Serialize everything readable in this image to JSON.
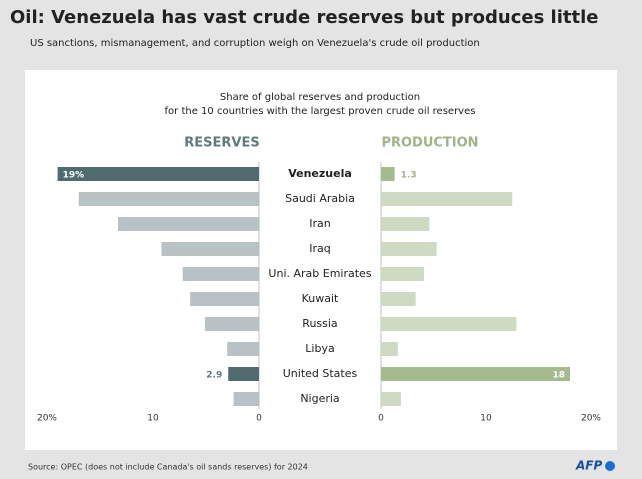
{
  "title": "Oil: Venezuela has vast crude reserves but produces little",
  "subtitle": "US sanctions, mismanagement, and corruption weigh on Venezuela's crude oil production",
  "source": "Source: OPEC (does not include Canada's oil sands reserves) for 2024",
  "logo": "AFP",
  "chart_data": {
    "type": "butterfly",
    "title_lines": [
      "Share of global reserves and production",
      "for the 10 countries with the largest proven crude oil reserves"
    ],
    "categories": [
      "Venezuela",
      "Saudi Arabia",
      "Iran",
      "Iraq",
      "Uni. Arab Emirates",
      "Kuwait",
      "Russia",
      "Libya",
      "United States",
      "Nigeria"
    ],
    "series": [
      {
        "name": "RESERVES",
        "color": "#5f7a7d",
        "values": [
          19,
          17,
          13.3,
          9.2,
          7.2,
          6.5,
          5.1,
          3,
          2.9,
          2.4
        ],
        "value_labels": [
          "19%",
          null,
          null,
          null,
          null,
          null,
          null,
          null,
          "2.9",
          null
        ],
        "colors": [
          "#4f6b6e",
          "#b8c2c5",
          "#b8c2c5",
          "#b8c2c5",
          "#b8c2c5",
          "#b8c2c5",
          "#b8c2c5",
          "#b8c2c5",
          "#4f6b6e",
          "#b8c2c5"
        ],
        "xlim": [
          0,
          20
        ],
        "xticks": [
          0,
          10,
          {
            "value": 20,
            "label": "20%"
          }
        ],
        "reversed": true
      },
      {
        "name": "PRODUCTION",
        "color": "#9fb386",
        "values": [
          1.3,
          12.5,
          4.6,
          5.3,
          4.1,
          3.3,
          12.9,
          1.6,
          18,
          1.9
        ],
        "value_labels": [
          "1.3",
          null,
          null,
          null,
          null,
          null,
          null,
          null,
          "18",
          null
        ],
        "colors": [
          "#a6bb8d",
          "#cfdac3",
          "#cfdac3",
          "#cfdac3",
          "#cfdac3",
          "#cfdac3",
          "#cfdac3",
          "#cfdac3",
          "#a6bb8d",
          "#cfdac3"
        ],
        "xlim": [
          0,
          20
        ],
        "xticks": [
          0,
          10,
          {
            "value": 20,
            "label": "20%"
          }
        ],
        "reversed": false
      }
    ]
  }
}
